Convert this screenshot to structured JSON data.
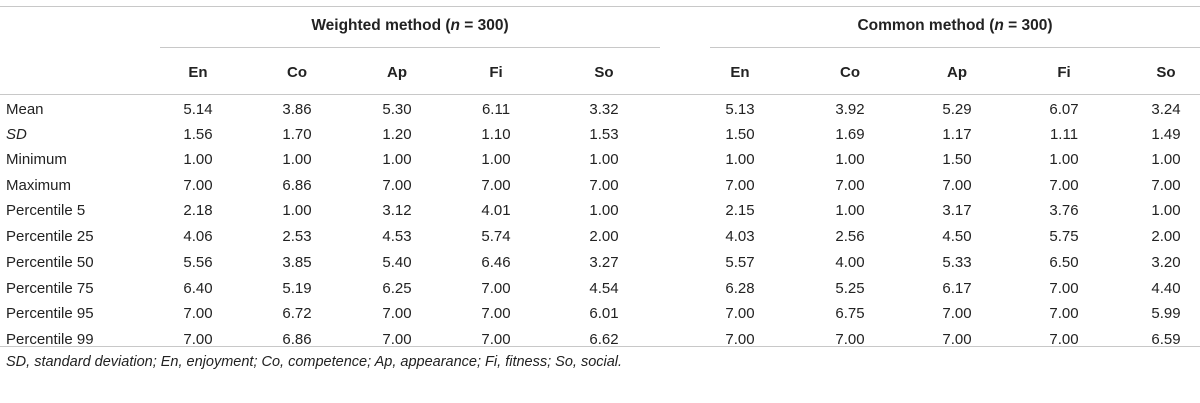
{
  "table": {
    "group_left": {
      "pre": "Weighted method (",
      "n": "n",
      "post": " = 300)"
    },
    "group_right": {
      "pre": "Common method (",
      "n": "n",
      "post": " = 300)"
    },
    "columns": [
      "En",
      "Co",
      "Ap",
      "Fi",
      "So",
      "En",
      "Co",
      "Ap",
      "Fi",
      "So"
    ],
    "rows": [
      {
        "label": "Mean",
        "italic": false,
        "values": [
          "5.14",
          "3.86",
          "5.30",
          "6.11",
          "3.32",
          "5.13",
          "3.92",
          "5.29",
          "6.07",
          "3.24"
        ]
      },
      {
        "label": "SD",
        "italic": true,
        "values": [
          "1.56",
          "1.70",
          "1.20",
          "1.10",
          "1.53",
          "1.50",
          "1.69",
          "1.17",
          "1.11",
          "1.49"
        ]
      },
      {
        "label": "Minimum",
        "italic": false,
        "values": [
          "1.00",
          "1.00",
          "1.00",
          "1.00",
          "1.00",
          "1.00",
          "1.00",
          "1.50",
          "1.00",
          "1.00"
        ]
      },
      {
        "label": "Maximum",
        "italic": false,
        "values": [
          "7.00",
          "6.86",
          "7.00",
          "7.00",
          "7.00",
          "7.00",
          "7.00",
          "7.00",
          "7.00",
          "7.00"
        ]
      },
      {
        "label": "Percentile 5",
        "italic": false,
        "values": [
          "2.18",
          "1.00",
          "3.12",
          "4.01",
          "1.00",
          "2.15",
          "1.00",
          "3.17",
          "3.76",
          "1.00"
        ]
      },
      {
        "label": "Percentile 25",
        "italic": false,
        "values": [
          "4.06",
          "2.53",
          "4.53",
          "5.74",
          "2.00",
          "4.03",
          "2.56",
          "4.50",
          "5.75",
          "2.00"
        ]
      },
      {
        "label": "Percentile 50",
        "italic": false,
        "values": [
          "5.56",
          "3.85",
          "5.40",
          "6.46",
          "3.27",
          "5.57",
          "4.00",
          "5.33",
          "6.50",
          "3.20"
        ]
      },
      {
        "label": "Percentile 75",
        "italic": false,
        "values": [
          "6.40",
          "5.19",
          "6.25",
          "7.00",
          "4.54",
          "6.28",
          "5.25",
          "6.17",
          "7.00",
          "4.40"
        ]
      },
      {
        "label": "Percentile 95",
        "italic": false,
        "values": [
          "7.00",
          "6.72",
          "7.00",
          "7.00",
          "6.01",
          "7.00",
          "6.75",
          "7.00",
          "7.00",
          "5.99"
        ]
      },
      {
        "label": "Percentile 99",
        "italic": false,
        "values": [
          "7.00",
          "6.86",
          "7.00",
          "7.00",
          "6.62",
          "7.00",
          "7.00",
          "7.00",
          "7.00",
          "6.59"
        ]
      }
    ],
    "footnote": "SD, standard deviation; En, enjoyment; Co, competence; Ap, appearance; Fi, fitness; So, social."
  }
}
